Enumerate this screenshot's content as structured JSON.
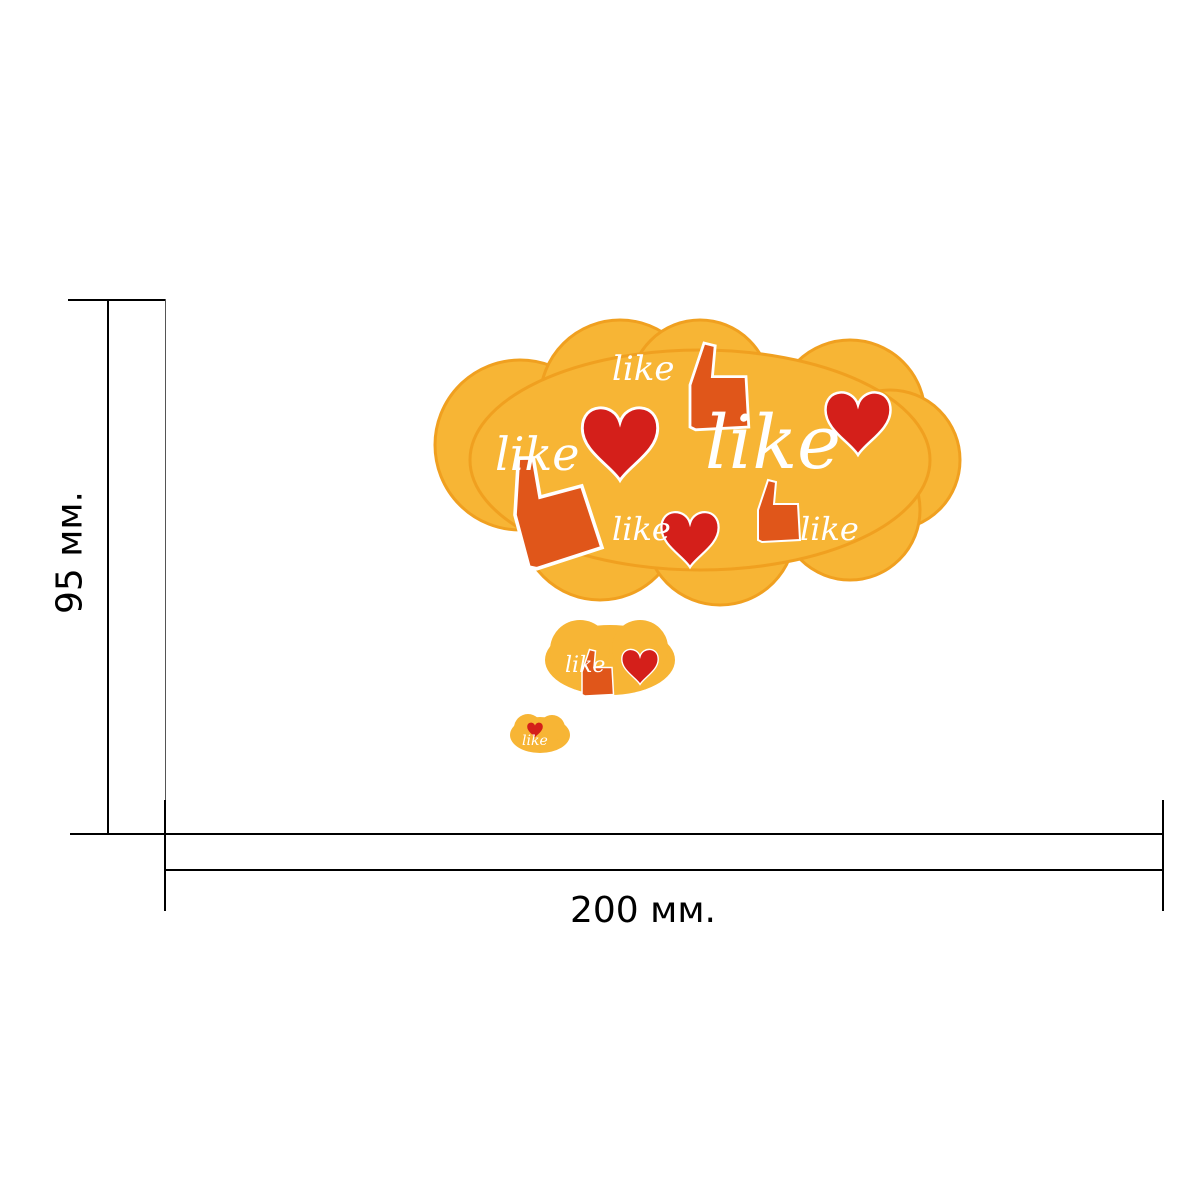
{
  "dimensions": {
    "width_label": "200 мм.",
    "height_label": "95 мм."
  },
  "artwork": {
    "lettering": [
      "like",
      "like",
      "like",
      "like",
      "like",
      "like",
      "like"
    ],
    "colors": {
      "cloud": "#f7b535",
      "cloud_edge": "#f0a020",
      "heart": "#d41f1a",
      "thumb": "#e0561a"
    }
  }
}
